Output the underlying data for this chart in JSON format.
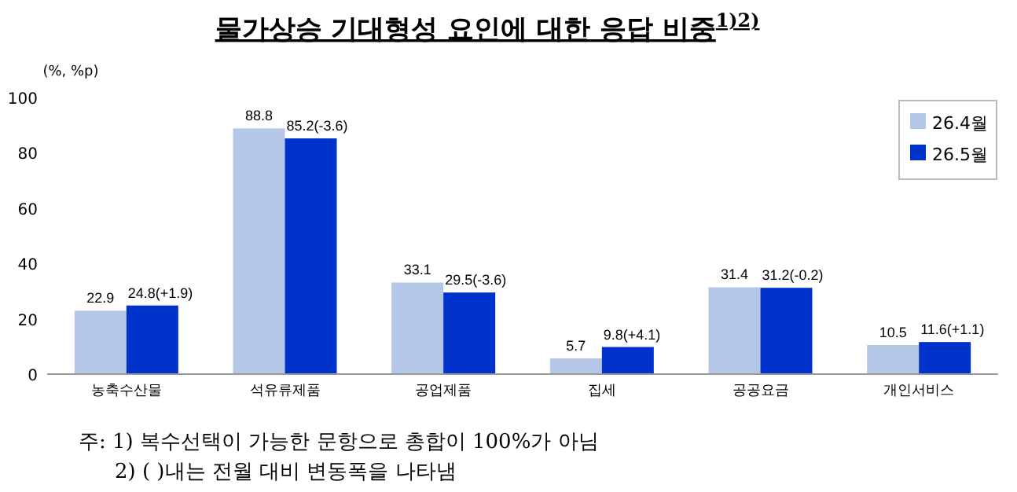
{
  "chart_data": {
    "type": "bar",
    "title": "물가상승 기대형성 요인에 대한 응답 비중$^{1)2)}$",
    "ylabel": "(%, %p)",
    "categories": [
      "농축수산물",
      "석유류제품",
      "공업제품",
      "집세",
      "공공요금",
      "개인서비스"
    ],
    "series": [
      {
        "name": "26.4월",
        "color": "#b4c7e7",
        "values": [
          22.9,
          88.8,
          33.1,
          5.7,
          31.4,
          10.5
        ],
        "value_labels": [
          "22.9",
          "88.8",
          "33.1",
          "5.7",
          "31.4",
          "10.5"
        ]
      },
      {
        "name": "26.5월",
        "color": "#0033cc",
        "values": [
          24.8,
          85.2,
          29.5,
          9.8,
          31.2,
          11.6
        ],
        "value_labels": [
          "24.8(+1.9)",
          "85.2(-3.6)",
          "29.5(-3.6)",
          "9.8(+4.1)",
          "31.2(-0.2)",
          "11.6(+1.1)"
        ]
      }
    ],
    "ylim": [
      0,
      100
    ],
    "yticks": [
      0,
      20,
      40,
      60,
      80,
      100
    ],
    "legend": "top right",
    "grid": false,
    "annotations": [
      "주: 1) 복수선택이 가능한 문항으로 총합이 100%가 아님",
      "2) ( )내는 전월 대비 변동폭을 나타냄"
    ]
  }
}
